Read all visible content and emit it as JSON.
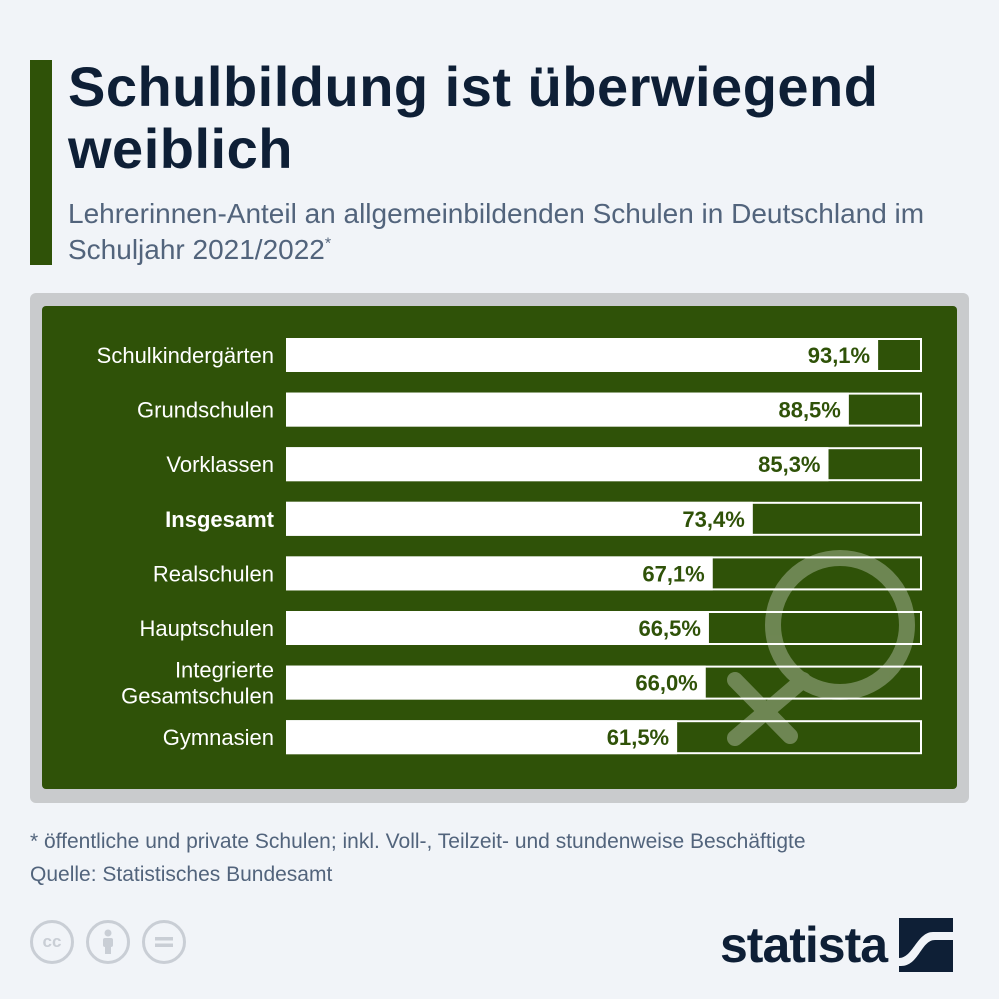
{
  "title": "Schulbildung ist überwiegend weiblich",
  "subtitle": "Lehrerinnen-Anteil an allgemeinbildenden Schulen in Deutschland im Schuljahr 2021/2022",
  "subtitle_mark": "*",
  "chart_data": {
    "type": "bar",
    "orientation": "horizontal",
    "categories": [
      "Schulkindergärten",
      "Grundschulen",
      "Vorklassen",
      "Insgesamt",
      "Realschulen",
      "Hauptschulen",
      "Integrierte Gesamtschulen",
      "Gymnasien"
    ],
    "values": [
      93.1,
      88.5,
      85.3,
      73.4,
      67.1,
      66.5,
      66.0,
      61.5
    ],
    "value_labels": [
      "93,1%",
      "88,5%",
      "85,3%",
      "73,4%",
      "67,1%",
      "66,5%",
      "66,0%",
      "61,5%"
    ],
    "highlight": "Insgesamt",
    "xlim": [
      0,
      100
    ],
    "unit": "%"
  },
  "footnote": "* öffentliche und private Schulen; inkl. Voll-, Teilzeit- und stundenweise Beschäftigte",
  "source": "Quelle: Statistisches Bundesamt",
  "license_icons": [
    "cc-icon",
    "by-icon",
    "nd-icon"
  ],
  "brand": "statista",
  "colors": {
    "board": "#2f5208",
    "frame": "#c9cbcd",
    "bar": "#ffffff",
    "label": "#ffffff",
    "value": "#2f5208",
    "title": "#0e1f36",
    "subtitle": "#52647c"
  }
}
